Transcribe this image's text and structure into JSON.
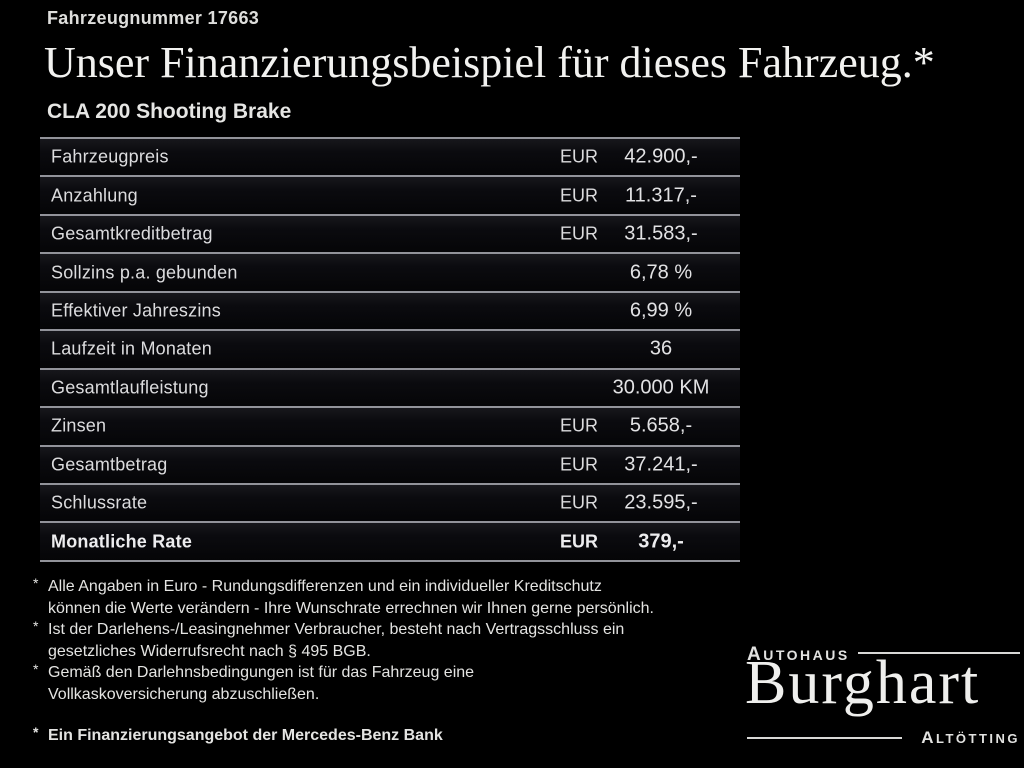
{
  "colors": {
    "background": "#000000",
    "text": "#e0e0e2",
    "divider": "#92939a",
    "title": "#f2f2f0"
  },
  "header": {
    "vehicle_number": "Fahrzeugnummer 17663",
    "title": "Unser Finanzierungsbeispiel für dieses Fahrzeug.*",
    "model": "CLA 200 Shooting Brake"
  },
  "table": {
    "rows": [
      {
        "label": "Fahrzeugpreis",
        "currency": "EUR",
        "value": "42.900,-",
        "emphasis": false
      },
      {
        "label": "Anzahlung",
        "currency": "EUR",
        "value": "11.317,-",
        "emphasis": false
      },
      {
        "label": "Gesamtkreditbetrag",
        "currency": "EUR",
        "value": "31.583,-",
        "emphasis": false
      },
      {
        "label": "Sollzins p.a. gebunden",
        "currency": "",
        "value": "6,78 %",
        "emphasis": false
      },
      {
        "label": "Effektiver Jahreszins",
        "currency": "",
        "value": "6,99 %",
        "emphasis": false
      },
      {
        "label": "Laufzeit in Monaten",
        "currency": "",
        "value": "36",
        "emphasis": false
      },
      {
        "label": "Gesamtlaufleistung",
        "currency": "",
        "value": "30.000 KM",
        "emphasis": false
      },
      {
        "label": "Zinsen",
        "currency": "EUR",
        "value": "5.658,-",
        "emphasis": false
      },
      {
        "label": "Gesamtbetrag",
        "currency": "EUR",
        "value": "37.241,-",
        "emphasis": false
      },
      {
        "label": "Schlussrate",
        "currency": "EUR",
        "value": "23.595,-",
        "emphasis": false
      },
      {
        "label": "Monatliche Rate",
        "currency": "EUR",
        "value": "379,-",
        "emphasis": true
      }
    ]
  },
  "footnotes": [
    {
      "marker": "*",
      "lines": [
        "Alle Angaben in Euro - Rundungsdifferenzen und ein individueller Kreditschutz",
        "können die Werte verändern - Ihre Wunschrate errechnen wir Ihnen gerne persönlich."
      ]
    },
    {
      "marker": "*",
      "lines": [
        "Ist der Darlehens-/Leasingnehmer Verbraucher, besteht nach Vertragsschluss ein",
        "gesetzliches Widerrufsrecht nach § 495 BGB."
      ]
    },
    {
      "marker": "*",
      "lines": [
        "Gemäß den Darlehnsbedingungen ist für das Fahrzeug eine",
        "Vollkaskoversicherung abzuschließen."
      ]
    },
    {
      "marker": "*",
      "lines": [
        "Ein Finanzierungsangebot der Mercedes-Benz Bank"
      ]
    }
  ],
  "dealer": {
    "top_label": "Autohaus",
    "name": "Burghart",
    "bottom_label": "Altötting"
  }
}
